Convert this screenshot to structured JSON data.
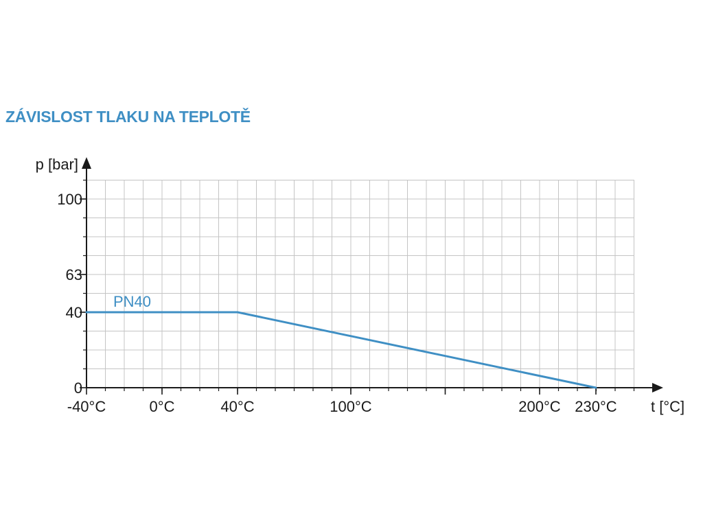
{
  "title": "ZÁVISLOST TLAKU NA TEPLOTĚ",
  "chart_data": {
    "type": "line",
    "title": "ZÁVISLOST TLAKU NA TEPLOTĚ",
    "xlabel": "t [°C]",
    "ylabel": "p [bar]",
    "x_ticks": [
      {
        "value": -40,
        "label": "-40°C"
      },
      {
        "value": 0,
        "label": "0°C"
      },
      {
        "value": 40,
        "label": "40°C"
      },
      {
        "value": 100,
        "label": "100°C"
      },
      {
        "value": 200,
        "label": "200°C"
      },
      {
        "value": 230,
        "label": "230°C"
      }
    ],
    "y_ticks": [
      {
        "value": 0,
        "label": "0"
      },
      {
        "value": 40,
        "label": "40"
      },
      {
        "value": 63,
        "label": "63"
      },
      {
        "value": 100,
        "label": "100"
      }
    ],
    "grid": true,
    "series": [
      {
        "name": "PN40",
        "color": "#3f8fc4",
        "points": [
          [
            -40,
            40
          ],
          [
            40,
            40
          ],
          [
            230,
            0
          ]
        ]
      }
    ]
  }
}
